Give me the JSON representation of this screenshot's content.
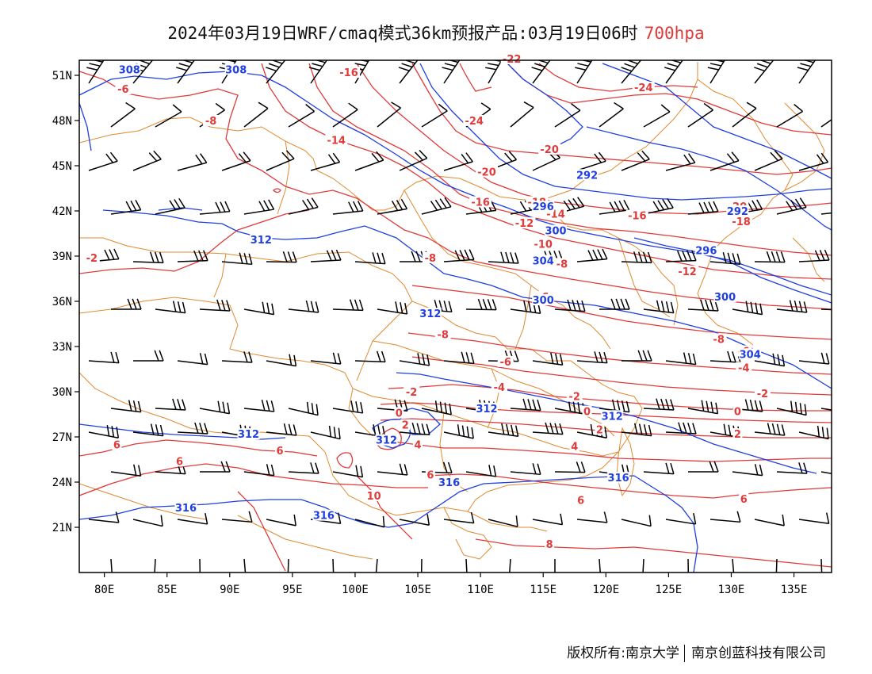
{
  "header": {
    "title": "2024年03月19日WRF/cmaq模式36km预报产品:03月19日06时",
    "level": "700hpa"
  },
  "axes": {
    "lat_labels": [
      "21N",
      "24N",
      "27N",
      "30N",
      "33N",
      "36N",
      "39N",
      "42N",
      "45N",
      "48N",
      "51N"
    ],
    "lat_values": [
      21,
      24,
      27,
      30,
      33,
      36,
      39,
      42,
      45,
      48,
      51
    ],
    "lon_labels": [
      "80E",
      "85E",
      "90E",
      "95E",
      "100E",
      "105E",
      "110E",
      "115E",
      "120E",
      "125E",
      "130E",
      "135E"
    ],
    "lon_values": [
      80,
      85,
      90,
      95,
      100,
      105,
      110,
      115,
      120,
      125,
      130,
      135
    ],
    "lon_range": [
      78,
      138
    ],
    "lat_range": [
      18,
      52
    ]
  },
  "colors": {
    "temperature": "#e03a3a",
    "height": "#1f3fe0",
    "boundary": "#e08a30",
    "wind": "#000000"
  },
  "temperature_labels": [
    {
      "text": "-16",
      "lon": 99.5,
      "lat": 51.1
    },
    {
      "text": "-22",
      "lon": 112.5,
      "lat": 52.0
    },
    {
      "text": "-6",
      "lon": 81.5,
      "lat": 50.0
    },
    {
      "text": "-8",
      "lon": 88.5,
      "lat": 47.9
    },
    {
      "text": "-14",
      "lon": 98.5,
      "lat": 46.6
    },
    {
      "text": "-24",
      "lon": 109.5,
      "lat": 47.9
    },
    {
      "text": "-24",
      "lon": 123.0,
      "lat": 50.1
    },
    {
      "text": "-20",
      "lon": 115.5,
      "lat": 46.0
    },
    {
      "text": "-20",
      "lon": 110.5,
      "lat": 44.5
    },
    {
      "text": "-16",
      "lon": 110.0,
      "lat": 42.5
    },
    {
      "text": "-18",
      "lon": 114.5,
      "lat": 42.5
    },
    {
      "text": "-14",
      "lon": 116.0,
      "lat": 41.7
    },
    {
      "text": "-12",
      "lon": 113.5,
      "lat": 41.1
    },
    {
      "text": "-16",
      "lon": 122.5,
      "lat": 41.6
    },
    {
      "text": "-20",
      "lon": 130.5,
      "lat": 42.2
    },
    {
      "text": "-18",
      "lon": 130.8,
      "lat": 41.2
    },
    {
      "text": "-10",
      "lon": 115.0,
      "lat": 39.7
    },
    {
      "text": "-8",
      "lon": 92.5,
      "lat": 40.1
    },
    {
      "text": "-8",
      "lon": 106.0,
      "lat": 38.8
    },
    {
      "text": "-8",
      "lon": 116.5,
      "lat": 38.4
    },
    {
      "text": "-12",
      "lon": 126.5,
      "lat": 37.9
    },
    {
      "text": "-2",
      "lon": 79.0,
      "lat": 38.8
    },
    {
      "text": "-6",
      "lon": 115.0,
      "lat": 36.2
    },
    {
      "text": "-8",
      "lon": 107.0,
      "lat": 33.7
    },
    {
      "text": "-8",
      "lon": 129.0,
      "lat": 33.4
    },
    {
      "text": "-6",
      "lon": 131.0,
      "lat": 32.6
    },
    {
      "text": "-6",
      "lon": 112.0,
      "lat": 31.9
    },
    {
      "text": "-4",
      "lon": 131.0,
      "lat": 31.5
    },
    {
      "text": "-4",
      "lon": 111.5,
      "lat": 30.2
    },
    {
      "text": "-2",
      "lon": 104.5,
      "lat": 29.9
    },
    {
      "text": "-2",
      "lon": 117.5,
      "lat": 29.6
    },
    {
      "text": "-2",
      "lon": 132.5,
      "lat": 29.8
    },
    {
      "text": "0",
      "lon": 103.5,
      "lat": 28.5
    },
    {
      "text": "0",
      "lon": 118.5,
      "lat": 28.6
    },
    {
      "text": "0",
      "lon": 130.5,
      "lat": 28.6
    },
    {
      "text": "2",
      "lon": 104.0,
      "lat": 27.7
    },
    {
      "text": "2",
      "lon": 119.5,
      "lat": 27.4
    },
    {
      "text": "2",
      "lon": 130.5,
      "lat": 27.1
    },
    {
      "text": "4",
      "lon": 105.0,
      "lat": 26.4
    },
    {
      "text": "4",
      "lon": 117.5,
      "lat": 26.3
    },
    {
      "text": "6",
      "lon": 81.0,
      "lat": 26.4
    },
    {
      "text": "6",
      "lon": 94.0,
      "lat": 26.0
    },
    {
      "text": "6",
      "lon": 86.0,
      "lat": 25.3
    },
    {
      "text": "6",
      "lon": 106.0,
      "lat": 24.4
    },
    {
      "text": "6",
      "lon": 118.0,
      "lat": 22.7
    },
    {
      "text": "6",
      "lon": 131.0,
      "lat": 22.8
    },
    {
      "text": "10",
      "lon": 101.5,
      "lat": 23.0
    },
    {
      "text": "8",
      "lon": 115.5,
      "lat": 19.8
    }
  ],
  "height_labels": [
    {
      "text": "308",
      "lon": 82.0,
      "lat": 51.3
    },
    {
      "text": "308",
      "lon": 90.5,
      "lat": 51.3
    },
    {
      "text": "292",
      "lon": 118.5,
      "lat": 44.3
    },
    {
      "text": "296",
      "lon": 115.0,
      "lat": 42.2
    },
    {
      "text": "292",
      "lon": 130.5,
      "lat": 41.9
    },
    {
      "text": "300",
      "lon": 116.0,
      "lat": 40.6
    },
    {
      "text": "312",
      "lon": 92.5,
      "lat": 40.0
    },
    {
      "text": "296",
      "lon": 128.0,
      "lat": 39.3
    },
    {
      "text": "304",
      "lon": 115.0,
      "lat": 38.6
    },
    {
      "text": "300",
      "lon": 115.0,
      "lat": 36.0
    },
    {
      "text": "300",
      "lon": 129.5,
      "lat": 36.2
    },
    {
      "text": "312",
      "lon": 106.0,
      "lat": 35.1
    },
    {
      "text": "304",
      "lon": 131.5,
      "lat": 32.4
    },
    {
      "text": "312",
      "lon": 91.5,
      "lat": 27.1
    },
    {
      "text": "312",
      "lon": 102.5,
      "lat": 26.7
    },
    {
      "text": "312",
      "lon": 110.5,
      "lat": 28.8
    },
    {
      "text": "312",
      "lon": 120.5,
      "lat": 28.3
    },
    {
      "text": "316",
      "lon": 107.5,
      "lat": 23.9
    },
    {
      "text": "316",
      "lon": 121.0,
      "lat": 24.2
    },
    {
      "text": "316",
      "lon": 86.5,
      "lat": 22.2
    },
    {
      "text": "316",
      "lon": 97.5,
      "lat": 21.7
    }
  ],
  "footer": {
    "copyright": "版权所有:南京大学",
    "company": "南京创蓝科技有限公司"
  }
}
